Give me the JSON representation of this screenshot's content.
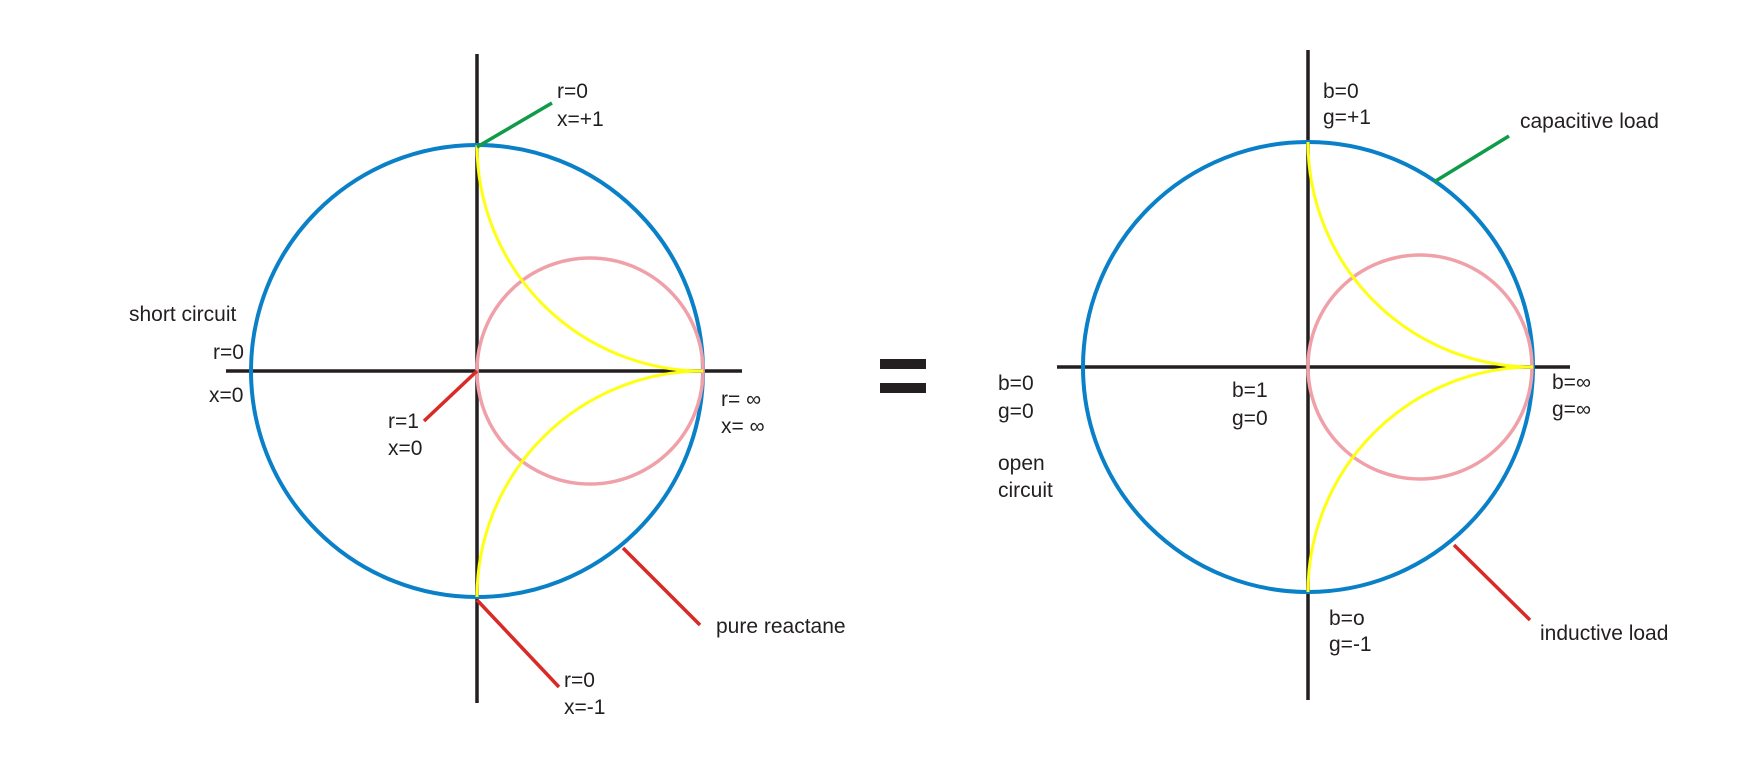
{
  "colors": {
    "outer_circle": "#0a80c8",
    "unit_resistance_circle": "#f0a0a8",
    "reactance_arcs": "#ffff14",
    "positive_pointer": "#0f9b48",
    "negative_pointer": "#d92a27",
    "axes": "#231f20"
  },
  "equals_sign": "=",
  "left_chart": {
    "top": {
      "line1": "r=0",
      "line2": "x=+1"
    },
    "short_circuit": {
      "title": "short circuit",
      "line1": "r=0",
      "line2": "x=0"
    },
    "center": {
      "line1": "r=1",
      "line2": "x=0"
    },
    "right": {
      "line1": "r= ∞",
      "line2": "x= ∞"
    },
    "bottom": {
      "line1": "r=0",
      "line2": "x=-1"
    },
    "pure_reactance": "pure reactane"
  },
  "right_chart": {
    "top": {
      "line1": "b=0",
      "line2": "g=+1"
    },
    "capacitive": "capacitive load",
    "left": {
      "line1": "b=0",
      "line2": "g=0"
    },
    "open_circuit": {
      "line1": "open",
      "line2": "circuit"
    },
    "center": {
      "line1": "b=1",
      "line2": "g=0"
    },
    "right": {
      "line1": "b=∞",
      "line2": "g=∞"
    },
    "bottom": {
      "line1": "b=o",
      "line2": "g=-1"
    },
    "inductive": "inductive load"
  }
}
